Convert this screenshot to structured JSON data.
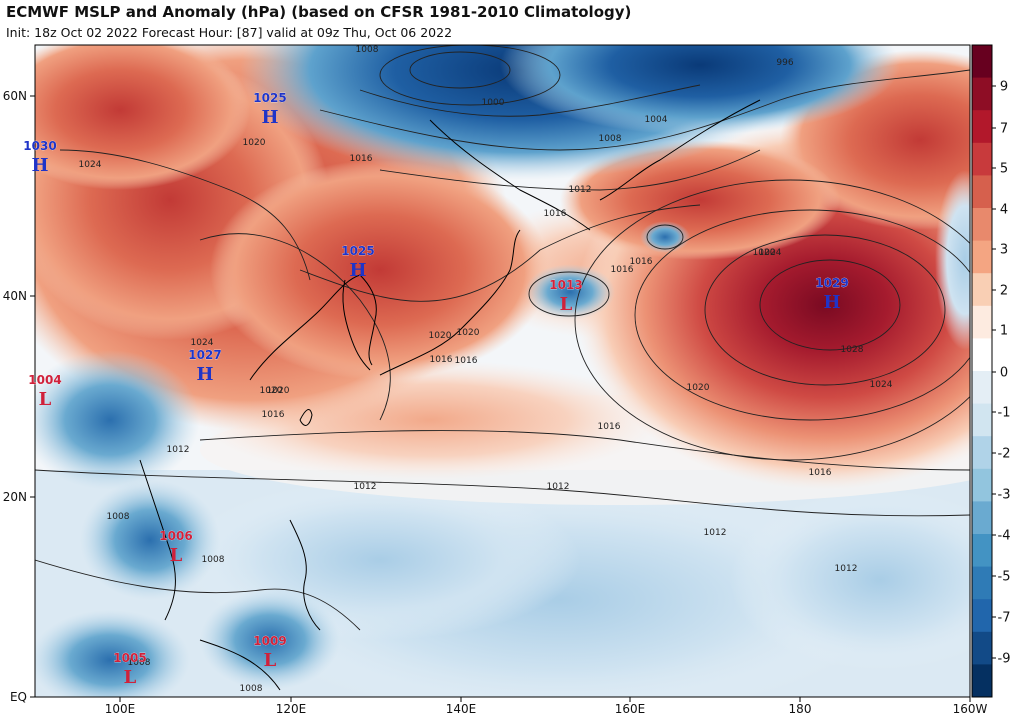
{
  "header": {
    "title": "ECMWF MSLP and Anomaly (hPa) (based on CFSR 1981-2010 Climatology)",
    "subtitle": "Init: 18z Oct 02 2022   Forecast Hour: [87]   valid at 09z Thu, Oct 06 2022"
  },
  "axes": {
    "lat_labels": [
      "60N",
      "40N",
      "20N",
      "EQ"
    ],
    "lon_labels": [
      "100E",
      "120E",
      "140E",
      "160E",
      "180",
      "160W"
    ]
  },
  "colorbar": {
    "ticks": [
      "9",
      "7",
      "5",
      "4",
      "3",
      "2",
      "1",
      "0",
      "-1",
      "-2",
      "-3",
      "-4",
      "-5",
      "-7",
      "-9"
    ],
    "colors": [
      "#67001f",
      "#8e0d25",
      "#b2182b",
      "#c83a3c",
      "#d6604d",
      "#e8896c",
      "#f4a582",
      "#f9cfb4",
      "#fdebe0",
      "#ffffff",
      "#e4eef5",
      "#d1e5f0",
      "#b0d3e8",
      "#92c5de",
      "#6aaad0",
      "#4393c3",
      "#2f7bb6",
      "#2166ac",
      "#124a87",
      "#053061"
    ]
  },
  "pressure_systems": [
    {
      "type": "H",
      "value": "1025",
      "name": "mongolia-high"
    },
    {
      "type": "H",
      "value": "1030",
      "name": "west-high"
    },
    {
      "type": "H",
      "value": "1025",
      "name": "northeast-china-high"
    },
    {
      "type": "H",
      "value": "1027",
      "name": "south-china-high"
    },
    {
      "type": "H",
      "value": "1029",
      "name": "pacific-high"
    },
    {
      "type": "L",
      "value": "1013",
      "name": "northwest-pacific-low"
    },
    {
      "type": "L",
      "value": "1004",
      "name": "myanmar-low"
    },
    {
      "type": "L",
      "value": "1006",
      "name": "indochina-low"
    },
    {
      "type": "L",
      "value": "1005",
      "name": "malay-low"
    },
    {
      "type": "L",
      "value": "1009",
      "name": "borneo-low"
    }
  ],
  "isobar_labels": [
    "1008",
    "1008",
    "1004",
    "1000",
    "996",
    "1012",
    "1016",
    "1020",
    "1024",
    "1028",
    "1016",
    "1016",
    "1016",
    "1012",
    "1012",
    "1012",
    "1012",
    "1016",
    "1020",
    "1020",
    "1024",
    "1024",
    "1020",
    "1016",
    "1020",
    "1016",
    "1016",
    "1020",
    "1020",
    "1016",
    "1012",
    "1008",
    "1008",
    "1008",
    "1008",
    "1024",
    "1020"
  ]
}
